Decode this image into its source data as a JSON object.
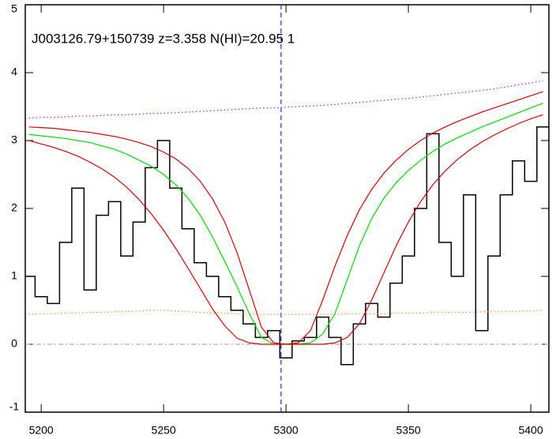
{
  "chart_data": {
    "type": "line",
    "annotation": "J003126.79+150739 z=3.358 N(HI)=20.95 1",
    "x": [
      5195,
      5200,
      5205,
      5210,
      5215,
      5220,
      5225,
      5230,
      5235,
      5240,
      5245,
      5250,
      5255,
      5260,
      5265,
      5270,
      5275,
      5280,
      5285,
      5290,
      5295,
      5300,
      5305,
      5310,
      5315,
      5320,
      5325,
      5330,
      5335,
      5340,
      5345,
      5350,
      5355,
      5360,
      5365,
      5370,
      5375,
      5380,
      5385,
      5390,
      5395,
      5400,
      5405
    ],
    "series": [
      {
        "color": "#000000",
        "style": "steps",
        "values": [
          1.0,
          0.7,
          0.6,
          1.5,
          2.3,
          0.8,
          1.9,
          2.1,
          1.3,
          1.8,
          2.6,
          3.0,
          2.3,
          1.7,
          1.2,
          1.0,
          0.7,
          0.5,
          0.3,
          0.1,
          0.2,
          -0.2,
          0.05,
          0.1,
          0.4,
          0.1,
          -0.3,
          0.3,
          0.6,
          0.4,
          0.9,
          1.3,
          2.0,
          3.1,
          1.5,
          1.0,
          2.2,
          0.2,
          1.3,
          2.2,
          2.7,
          2.4,
          3.2
        ]
      },
      {
        "color": "#ff8c3a",
        "style": "dotted",
        "values": [
          0.44,
          0.45,
          0.45,
          0.46,
          0.46,
          0.47,
          0.47,
          0.48,
          0.48,
          0.49,
          0.5,
          0.5,
          0.49,
          0.48,
          0.47,
          0.46,
          0.46,
          0.45,
          0.45,
          0.44,
          0.44,
          0.44,
          0.44,
          0.44,
          0.44,
          0.44,
          0.45,
          0.45,
          0.45,
          0.45,
          0.46,
          0.46,
          0.46,
          0.47,
          0.47,
          0.47,
          0.47,
          0.48,
          0.48,
          0.48,
          0.49,
          0.49,
          0.5
        ]
      },
      {
        "color": "#a020f0",
        "style": "dotted",
        "values": [
          3.33,
          3.34,
          3.34,
          3.35,
          3.36,
          3.36,
          3.37,
          3.38,
          3.38,
          3.39,
          3.4,
          3.4,
          3.41,
          3.42,
          3.43,
          3.44,
          3.45,
          3.46,
          3.47,
          3.48,
          3.48,
          3.49,
          3.5,
          3.51,
          3.52,
          3.53,
          3.55,
          3.56,
          3.58,
          3.59,
          3.61,
          3.62,
          3.64,
          3.66,
          3.68,
          3.7,
          3.72,
          3.74,
          3.76,
          3.79,
          3.82,
          3.85,
          3.88
        ]
      },
      {
        "color": "#00dd00",
        "style": "solid",
        "values": [
          3.09,
          3.07,
          3.05,
          3.03,
          3.0,
          2.97,
          2.92,
          2.87,
          2.8,
          2.71,
          2.62,
          2.5,
          2.35,
          2.15,
          1.9,
          1.58,
          1.22,
          0.85,
          0.45,
          0.1,
          0,
          0,
          0,
          0.02,
          0.15,
          0.45,
          0.95,
          1.45,
          1.85,
          2.15,
          2.38,
          2.56,
          2.71,
          2.84,
          2.95,
          3.04,
          3.12,
          3.2,
          3.27,
          3.34,
          3.41,
          3.48,
          3.55
        ]
      },
      {
        "color": "#dd0000",
        "style": "solid",
        "values": [
          3.2,
          3.19,
          3.18,
          3.16,
          3.14,
          3.12,
          3.09,
          3.06,
          3.02,
          2.97,
          2.91,
          2.83,
          2.73,
          2.59,
          2.4,
          2.14,
          1.8,
          1.35,
          0.8,
          0.25,
          0.02,
          0,
          0.02,
          0.2,
          0.65,
          1.15,
          1.6,
          1.98,
          2.28,
          2.52,
          2.71,
          2.87,
          3.0,
          3.11,
          3.2,
          3.28,
          3.35,
          3.42,
          3.48,
          3.54,
          3.6,
          3.66,
          3.72
        ]
      },
      {
        "color": "#dd0000",
        "style": "solid",
        "values": [
          3.0,
          2.95,
          2.9,
          2.84,
          2.77,
          2.68,
          2.58,
          2.46,
          2.31,
          2.13,
          1.92,
          1.68,
          1.41,
          1.12,
          0.82,
          0.52,
          0.27,
          0.09,
          0.02,
          0,
          0,
          0,
          0,
          0,
          0,
          0.02,
          0.1,
          0.3,
          0.65,
          1.05,
          1.45,
          1.8,
          2.1,
          2.35,
          2.55,
          2.72,
          2.86,
          2.98,
          3.08,
          3.17,
          3.25,
          3.32,
          3.38
        ]
      }
    ],
    "vline": {
      "x": 5298,
      "color": "#0000cc"
    },
    "hline": {
      "y": 0,
      "color": "#999999"
    },
    "xlim": [
      5193.5,
      5407.4
    ],
    "ylim": [
      -1,
      5
    ],
    "xticks": [
      5200,
      5250,
      5300,
      5350,
      5400
    ],
    "yticks": [
      -1,
      0,
      1,
      2,
      3,
      4,
      5
    ]
  }
}
